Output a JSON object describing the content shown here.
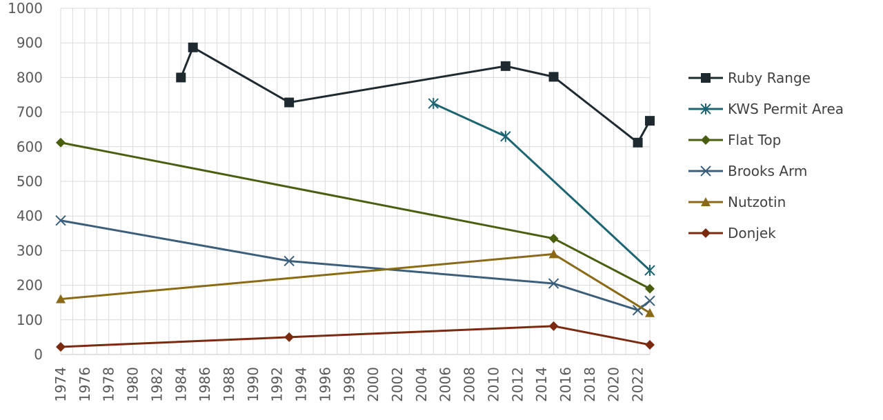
{
  "chart_data": {
    "type": "line",
    "title": "",
    "xlabel": "",
    "ylabel": "",
    "xlim": [
      1974,
      2023
    ],
    "ylim": [
      0,
      1000
    ],
    "x_ticks": [
      "1974",
      "1976",
      "1978",
      "1980",
      "1982",
      "1984",
      "1986",
      "1988",
      "1990",
      "1992",
      "1994",
      "1996",
      "1998",
      "2000",
      "2002",
      "2004",
      "2006",
      "2008",
      "2010",
      "2012",
      "2014",
      "2016",
      "2018",
      "2020",
      "2022"
    ],
    "y_ticks": [
      "0",
      "100",
      "200",
      "300",
      "400",
      "500",
      "600",
      "700",
      "800",
      "900",
      "1000"
    ],
    "grid": true,
    "legend_position": "right",
    "series": [
      {
        "name": "Ruby Range",
        "color": "#1f2a30",
        "marker": "square",
        "points": [
          [
            1984,
            800
          ],
          [
            1985,
            887
          ],
          [
            1993,
            728
          ],
          [
            2011,
            833
          ],
          [
            2015,
            802
          ],
          [
            2022,
            612
          ],
          [
            2023,
            675
          ]
        ]
      },
      {
        "name": "KWS Permit Area",
        "color": "#1b6570",
        "marker": "star",
        "points": [
          [
            2005,
            725
          ],
          [
            2011,
            630
          ],
          [
            2023,
            243
          ]
        ]
      },
      {
        "name": "Flat Top",
        "color": "#4a5e10",
        "marker": "diamond",
        "points": [
          [
            1974,
            612
          ],
          [
            2015,
            335
          ],
          [
            2023,
            190
          ]
        ]
      },
      {
        "name": "Brooks Arm",
        "color": "#3b5e7a",
        "marker": "x",
        "points": [
          [
            1974,
            387
          ],
          [
            1993,
            270
          ],
          [
            2015,
            205
          ],
          [
            2022,
            128
          ],
          [
            2023,
            155
          ]
        ]
      },
      {
        "name": "Nutzotin",
        "color": "#8a6a16",
        "marker": "triangle",
        "points": [
          [
            1974,
            160
          ],
          [
            2015,
            290
          ],
          [
            2023,
            120
          ]
        ]
      },
      {
        "name": "Donjek",
        "color": "#7b2a10",
        "marker": "diamond",
        "points": [
          [
            1974,
            22
          ],
          [
            1993,
            50
          ],
          [
            2015,
            82
          ],
          [
            2023,
            28
          ]
        ]
      }
    ]
  }
}
